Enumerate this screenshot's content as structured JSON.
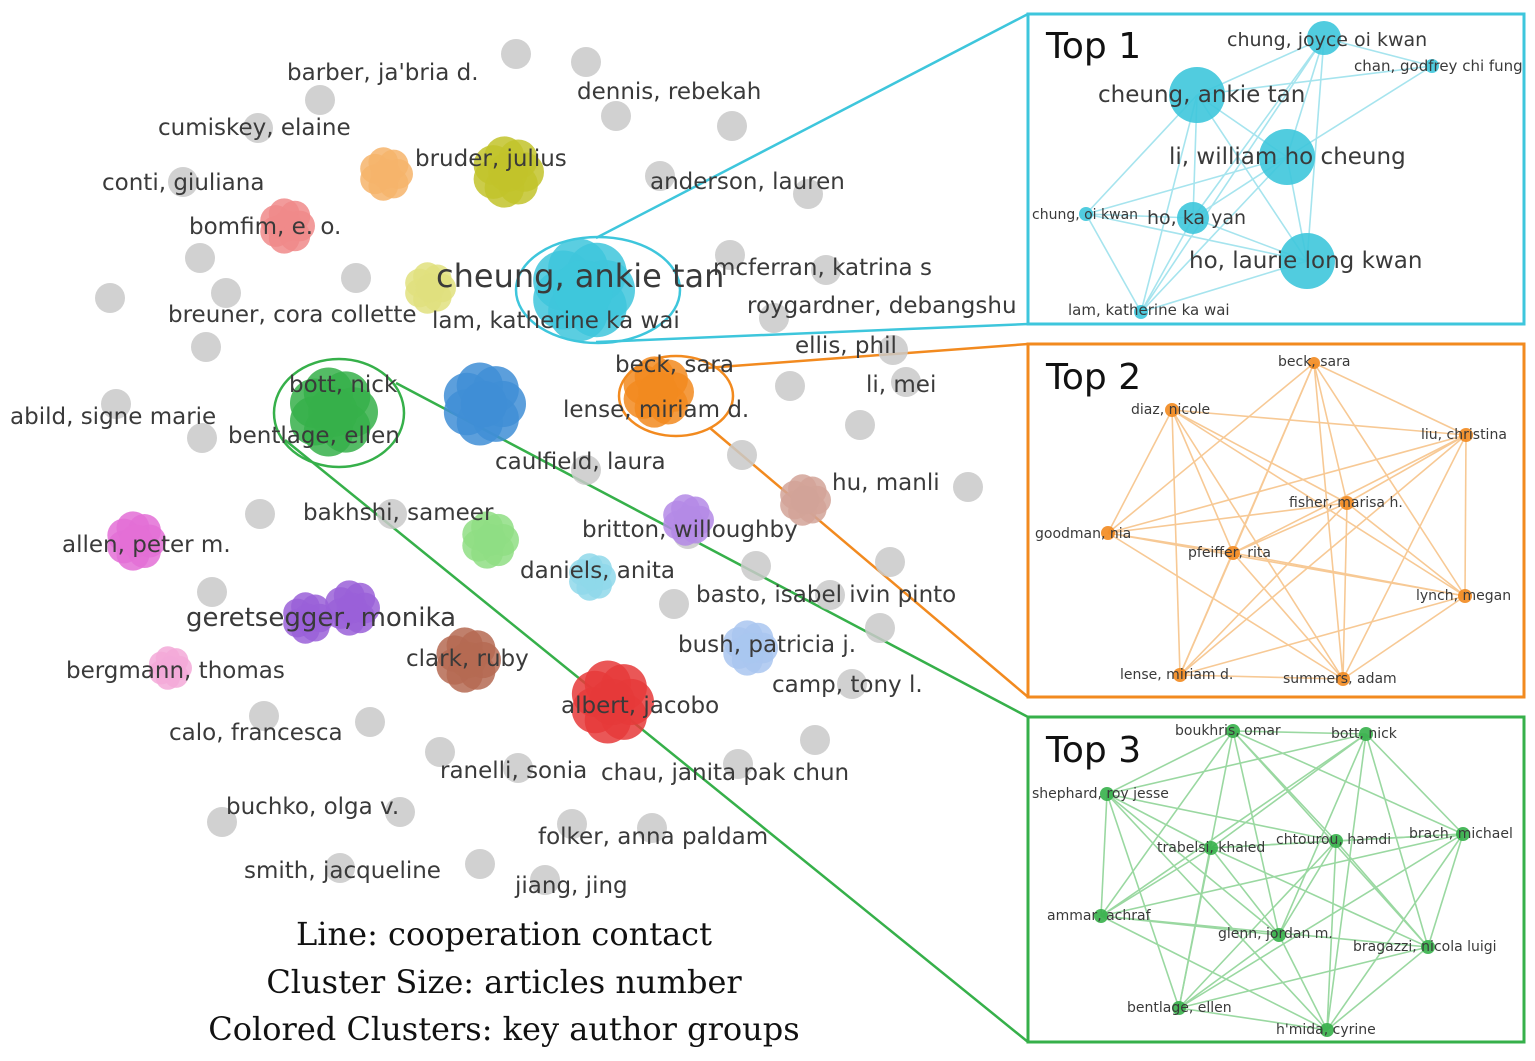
{
  "colors": {
    "grey": "#c9c9c9",
    "cyan": "#3ec6dc",
    "orange": "#f28a1f",
    "green": "#36b04a",
    "yellow": "#c2c32a",
    "light_yellow": "#e0e07e",
    "peach": "#f6b46b",
    "red_light": "#f08a8a",
    "blue": "#3f8ed6",
    "pink": "#e36fd6",
    "light_green": "#8fde84",
    "lavender": "#b48ae6",
    "light_blue": "#8fd8ea",
    "brown_light": "#d2a398",
    "purple": "#9a60d8",
    "light_pink": "#f3a9d8",
    "brown": "#b56a52",
    "red": "#e63a3a",
    "periwinkle": "#a9c6f0"
  },
  "network": {
    "labels": [
      "barber, ja'bria d.",
      "dennis, rebekah",
      "cumiskey, elaine",
      "bruder, julius",
      "conti, giuliana",
      "anderson, lauren",
      "bomfim, e. o.",
      "cheung, ankie tan",
      "mcferran, katrina s",
      "roygardner, debangshu",
      "breuner, cora collette",
      "lam, katherine ka wai",
      "ellis, phil",
      "beck, sara",
      "bott, nick",
      "li, mei",
      "abild, signe marie",
      "lense, miriam d.",
      "bentlage, ellen",
      "caulfield, laura",
      "hu, manli",
      "bakhshi, sameer",
      "britton, willoughby",
      "allen, peter m.",
      "daniels, anita",
      "basto, isabel ivin pinto",
      "geretsegger, monika",
      "bush, patricia j.",
      "clark, ruby",
      "bergmann, thomas",
      "camp, tony l.",
      "albert, jacobo",
      "calo, francesca",
      "ranelli, sonia",
      "chau, janita pak chun",
      "buchko, olga v.",
      "folker, anna paldam",
      "smith, jacqueline",
      "jiang, jing"
    ]
  },
  "legend": {
    "line": "Line: cooperation contact",
    "size": "Cluster Size: articles number",
    "colored": "Colored Clusters: key author groups"
  },
  "panels": [
    {
      "title": "Top 1",
      "color": "#3ec6dc",
      "nodes": [
        "chung, joyce oi kwan",
        "chan, godfrey chi fung",
        "cheung, ankie tan",
        "li, william ho cheung",
        "chung, oi kwan",
        "ho, ka yan",
        "ho, laurie long kwan",
        "lam, katherine ka wai"
      ]
    },
    {
      "title": "Top 2",
      "color": "#f28a1f",
      "nodes": [
        "beck, sara",
        "diaz, nicole",
        "liu, christina",
        "fisher, marisa h.",
        "goodman, nia",
        "pfeiffer, rita",
        "lynch, megan",
        "lense, miriam d.",
        "summers, adam"
      ]
    },
    {
      "title": "Top 3",
      "color": "#36b04a",
      "nodes": [
        "boukhris, omar",
        "bott, nick",
        "shephard, roy jesse",
        "brach, michael",
        "chtourou, hamdi",
        "trabelsi, khaled",
        "ammar, achraf",
        "glenn, jordan m.",
        "bragazzi, nicola luigi",
        "bentlage, ellen",
        "h'mida, cyrine"
      ]
    }
  ]
}
